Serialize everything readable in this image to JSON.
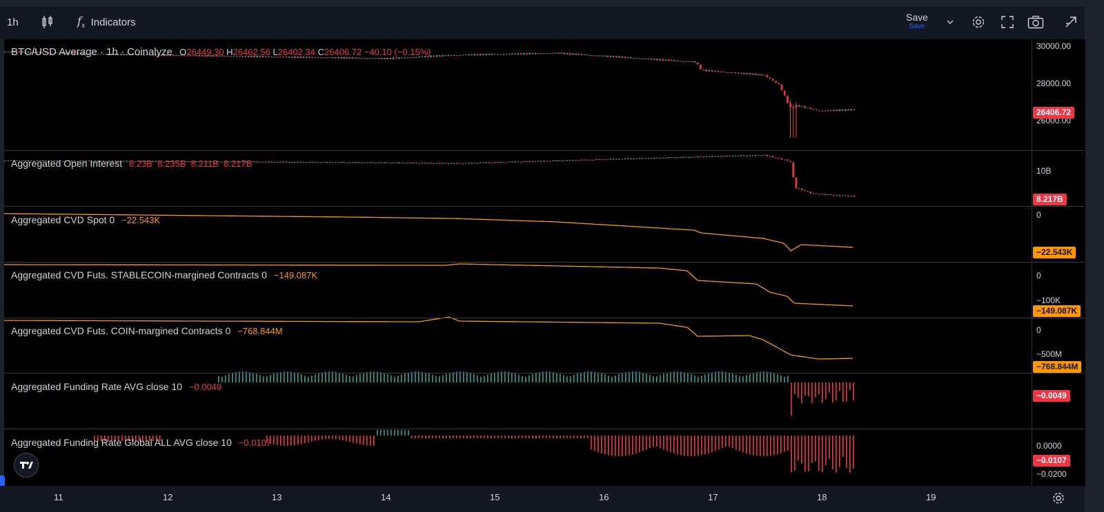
{
  "toolbar": {
    "interval": "1h",
    "indicators_label": "Indicators",
    "save_label": "Save",
    "save_sublabel": "Save"
  },
  "panes": {
    "price": {
      "title": "BTC/USD Average · 1h · Coinalyze",
      "o_label": "O",
      "o": "26449.30",
      "h_label": "H",
      "h": "26462.56",
      "l_label": "L",
      "l": "26402.34",
      "c_label": "C",
      "c": "26406.72",
      "change": "−40.10 (−0.15%)",
      "axis": [
        "30000.00",
        "28000.00",
        "26000.00"
      ],
      "last": "26406.72"
    },
    "oi": {
      "title": "Aggregated Open Interest",
      "values": "8.23B  8.235B  8.211B  8.217B",
      "axis": [
        "10B"
      ],
      "last": "8.217B"
    },
    "cvd_spot": {
      "title": "Aggregated CVD Spot 0",
      "value": "−22.543K",
      "axis": [
        "0"
      ],
      "last": "−22.543K"
    },
    "cvd_stable": {
      "title": "Aggregated CVD Futs. STABLECOIN-margined Contracts 0",
      "value": "−149.087K",
      "axis": [
        "0",
        "−100K"
      ],
      "last": "−149.087K"
    },
    "cvd_coin": {
      "title": "Aggregated CVD Futs. COIN-margined Contracts 0",
      "value": "−768.844M",
      "axis": [
        "0",
        "−500M"
      ],
      "last": "−768.844M"
    },
    "funding": {
      "title": "Aggregated Funding Rate AVG close 10",
      "value": "−0.0049",
      "last": "−0.0049"
    },
    "funding_global": {
      "title": "Aggregated Funding Rate Global ALL AVG close 10",
      "value": "−0.0107",
      "axis": [
        "0.0000",
        "−0.0200"
      ],
      "last": "−0.0107"
    }
  },
  "time_axis": [
    "11",
    "12",
    "13",
    "14",
    "15",
    "16",
    "17",
    "18",
    "19"
  ],
  "colors": {
    "up": "#26a69a",
    "down": "#f23645",
    "cvd_line": "#ff9800",
    "background": "#000000",
    "toolbar": "#131722"
  },
  "icons": [
    "candles-icon",
    "indicators-fx-icon",
    "chevron-down-icon",
    "gear-icon",
    "fullscreen-icon",
    "camera-icon",
    "publish-icon",
    "settings-circle-icon",
    "tradingview-logo-icon"
  ]
}
